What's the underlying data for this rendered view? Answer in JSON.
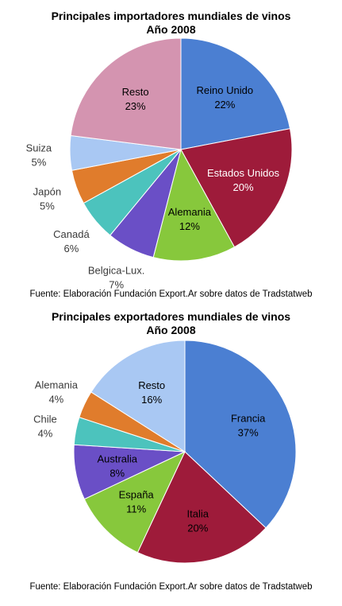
{
  "chart_data": [
    {
      "type": "pie",
      "title": "Principales importadores mundiales de vinos",
      "subtitle": "Año 2008",
      "source": "Fuente: Elaboración Fundación Export.Ar sobre datos de Tradstatweb",
      "slices": [
        {
          "label": "Reino Unido",
          "value": 22,
          "value_label": "22%",
          "color": "#4b7fd2",
          "label_color": "#000000",
          "inside": true
        },
        {
          "label": "Estados Unidos",
          "value": 20,
          "value_label": "20%",
          "color": "#9e1b3a",
          "label_color": "#ffffff",
          "inside": true
        },
        {
          "label": "Alemania",
          "value": 12,
          "value_label": "12%",
          "color": "#87c83c",
          "label_color": "#000000",
          "inside": true
        },
        {
          "label": "Belgica-Lux.",
          "value": 7,
          "value_label": "7%",
          "color": "#6a4fc6",
          "label_color": "#3a3a3a",
          "inside": false
        },
        {
          "label": "Canadá",
          "value": 6,
          "value_label": "6%",
          "color": "#4cc3bd",
          "label_color": "#3a3a3a",
          "inside": false
        },
        {
          "label": "Japón",
          "value": 5,
          "value_label": "5%",
          "color": "#e07c2c",
          "label_color": "#3a3a3a",
          "inside": false
        },
        {
          "label": "Suiza",
          "value": 5,
          "value_label": "5%",
          "color": "#a9c8f3",
          "label_color": "#3a3a3a",
          "inside": false
        },
        {
          "label": "Resto",
          "value": 23,
          "value_label": "23%",
          "color": "#d494b0",
          "label_color": "#000000",
          "inside": true
        }
      ]
    },
    {
      "type": "pie",
      "title": "Principales exportadores mundiales de vinos",
      "subtitle": "Año 2008",
      "source": "Fuente: Elaboración Fundación Export.Ar sobre datos de Tradstatweb",
      "slices": [
        {
          "label": "Francia",
          "value": 37,
          "value_label": "37%",
          "color": "#4b7fd2",
          "label_color": "#000000",
          "inside": true
        },
        {
          "label": "Italia",
          "value": 20,
          "value_label": "20%",
          "color": "#9e1b3a",
          "label_color": "#000000",
          "inside": true
        },
        {
          "label": "España",
          "value": 11,
          "value_label": "11%",
          "color": "#87c83c",
          "label_color": "#000000",
          "inside": true
        },
        {
          "label": "Australia",
          "value": 8,
          "value_label": "8%",
          "color": "#6a4fc6",
          "label_color": "#000000",
          "inside": true
        },
        {
          "label": "Chile",
          "value": 4,
          "value_label": "4%",
          "color": "#4cc3bd",
          "label_color": "#3a3a3a",
          "inside": false
        },
        {
          "label": "Alemania",
          "value": 4,
          "value_label": "4%",
          "color": "#e07c2c",
          "label_color": "#3a3a3a",
          "inside": false
        },
        {
          "label": "Resto",
          "value": 16,
          "value_label": "16%",
          "color": "#a9c8f3",
          "label_color": "#000000",
          "inside": true
        }
      ]
    }
  ]
}
